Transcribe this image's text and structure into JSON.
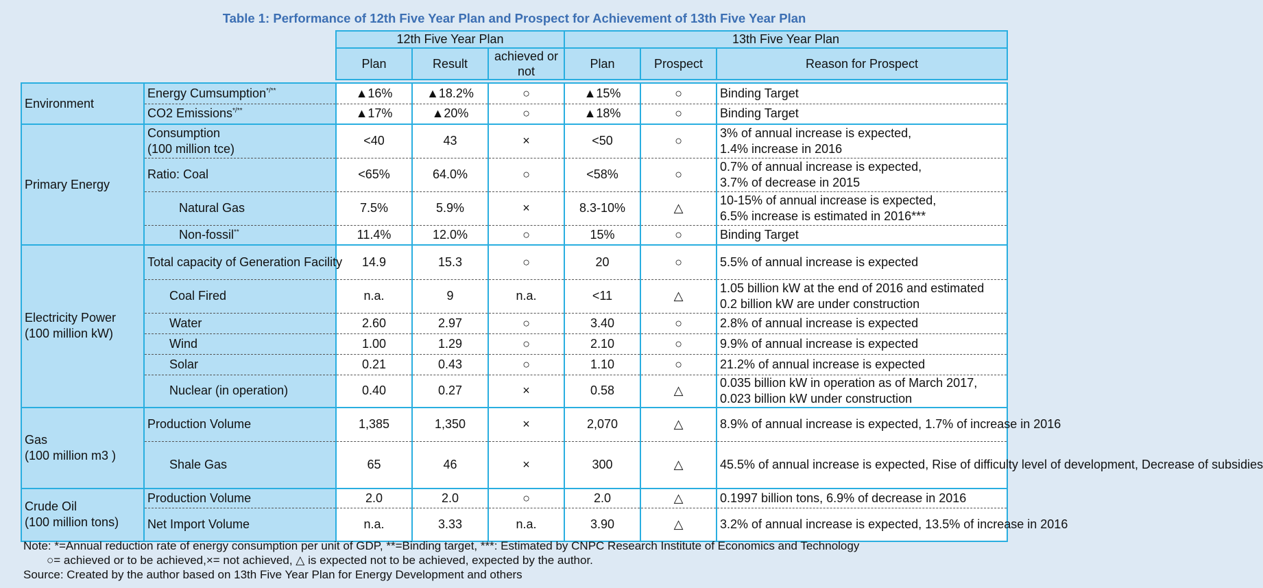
{
  "title": "Table 1: Performance of 12th Five Year Plan and Prospect for Achievement of 13th Five Year Plan",
  "headers": {
    "plan12": "12th Five Year Plan",
    "plan13": "13th Five Year Plan",
    "plan": "Plan",
    "result": "Result",
    "achieved": "achieved or not",
    "plan2": "Plan",
    "prospect": "Prospect",
    "reason": "Reason for Prospect"
  },
  "categories": {
    "environment": "Environment",
    "primary_energy": "Primary Energy",
    "electricity_l1": "Electricity Power",
    "electricity_l2": "(100 million kW)",
    "gas_l1": "Gas",
    "gas_l2": "(100 million m3 )",
    "oil_l1": "Crude Oil",
    "oil_l2": "(100 million tons)"
  },
  "rows": [
    {
      "label": "Energy Cumsumption",
      "sup": "*/**",
      "plan": "▲16%",
      "result": "▲18.2%",
      "achieved": "○",
      "plan13": "▲15%",
      "prospect": "○",
      "reason": "Binding Target"
    },
    {
      "label": "CO2 Emissions",
      "sup": "*/**",
      "plan": "▲17%",
      "result": "▲20%",
      "achieved": "○",
      "plan13": "▲18%",
      "prospect": "○",
      "reason": "Binding Target"
    },
    {
      "label": "Consumption\n(100 million tce)",
      "plan": "<40",
      "result": "43",
      "achieved": "×",
      "plan13": "<50",
      "prospect": "○",
      "reason": "3% of annual increase is expected,\n1.4% increase in 2016"
    },
    {
      "label": "Ratio: Coal",
      "plan": "<65%",
      "result": "64.0%",
      "achieved": "○",
      "plan13": "<58%",
      "prospect": "○",
      "reason": "0.7% of annual increase is expected,\n3.7% of decrease in 2015"
    },
    {
      "label": "Natural Gas",
      "plan": "7.5%",
      "result": "5.9%",
      "achieved": "×",
      "plan13": "8.3-10%",
      "prospect": "△",
      "reason": "10-15% of annual increase is expected,\n6.5% increase is estimated in 2016***"
    },
    {
      "label": "Non-fossil",
      "sup": "**",
      "plan": "11.4%",
      "result": "12.0%",
      "achieved": "○",
      "plan13": "15%",
      "prospect": "○",
      "reason": "Binding Target"
    },
    {
      "label": "Total capacity of Generation Facility",
      "plan": "14.9",
      "result": "15.3",
      "achieved": "○",
      "plan13": "20",
      "prospect": "○",
      "reason": "5.5% of annual increase is expected"
    },
    {
      "label": "Coal Fired",
      "plan": "n.a.",
      "result": "9",
      "achieved": "n.a.",
      "plan13": "<11",
      "prospect": "△",
      "reason": "1.05 billion kW at the end of 2016 and estimated\n0.2 billion kW are under construction"
    },
    {
      "label": "Water",
      "plan": "2.60",
      "result": "2.97",
      "achieved": "○",
      "plan13": "3.40",
      "prospect": "○",
      "reason": "2.8% of annual increase is expected"
    },
    {
      "label": "Wind",
      "plan": "1.00",
      "result": "1.29",
      "achieved": "○",
      "plan13": "2.10",
      "prospect": "○",
      "reason": "9.9% of annual increase is expected"
    },
    {
      "label": "Solar",
      "plan": "0.21",
      "result": "0.43",
      "achieved": "○",
      "plan13": "1.10",
      "prospect": "○",
      "reason": "21.2% of annual increase is expected"
    },
    {
      "label": "Nuclear (in operation)",
      "plan": "0.40",
      "result": "0.27",
      "achieved": "×",
      "plan13": "0.58",
      "prospect": "△",
      "reason": "0.035 billion kW in operation as of March 2017,\n0.023 billion kW under construction"
    },
    {
      "label": "Production Volume",
      "plan": "1,385",
      "result": "1,350",
      "achieved": "×",
      "plan13": "2,070",
      "prospect": "△",
      "reason": "8.9% of annual increase is expected, 1.7% of increase in 2016"
    },
    {
      "label": "Shale Gas",
      "plan": "65",
      "result": "46",
      "achieved": "×",
      "plan13": "300",
      "prospect": "△",
      "reason": "45.5% of annual increase is expected, Rise of difficulty level of development, Decrease of subsidies"
    },
    {
      "label": "Production Volume",
      "plan": "2.0",
      "result": "2.0",
      "achieved": "○",
      "plan13": "2.0",
      "prospect": "△",
      "reason": "0.1997 billion tons, 6.9% of decrease in 2016"
    },
    {
      "label": "Net Import Volume",
      "plan": "n.a.",
      "result": "3.33",
      "achieved": "n.a.",
      "plan13": "3.90",
      "prospect": "△",
      "reason": "3.2% of annual increase is expected, 13.5% of increase in 2016"
    }
  ],
  "notes": {
    "line1": "Note: *=Annual reduction rate of energy consumption per unit of GDP,  **=Binding target, ***: Estimated by CNPC Research Institute of Economics and Technology",
    "line2": "○= achieved or to be achieved,×= not achieved, △ is expected not to be achieved,  expected by the author.",
    "line3": "Source: Created by the author based on 13th Five Year Plan for Energy Development and others"
  }
}
